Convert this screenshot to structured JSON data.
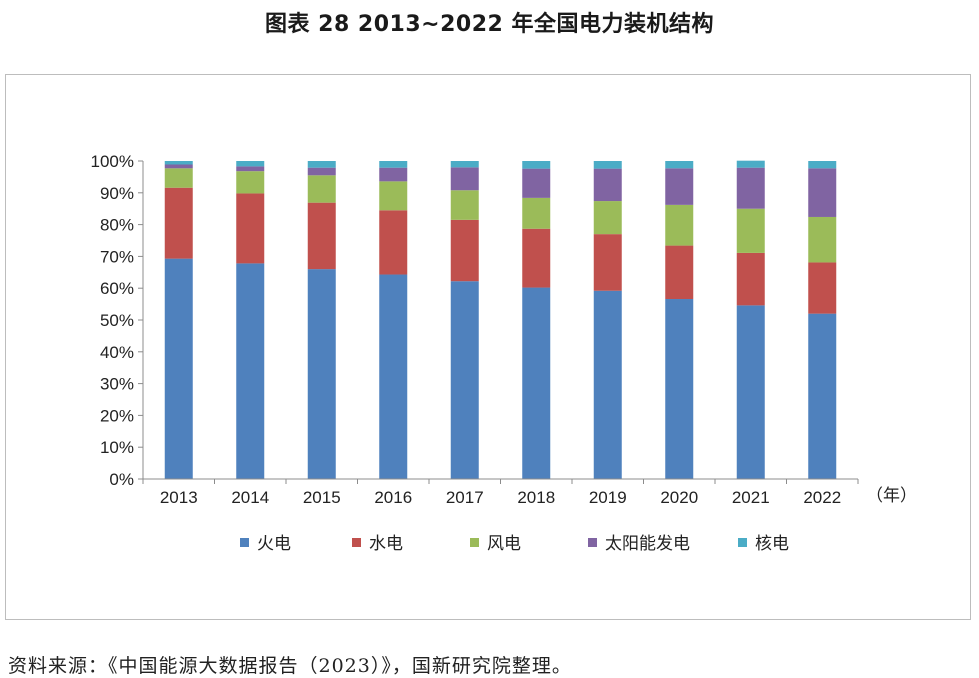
{
  "title": "图表 28  2013~2022 年全国电力装机结构",
  "source": "资料来源：《中国能源大数据报告（2023）》，国新研究院整理。",
  "chart_data": {
    "type": "bar",
    "stacked": true,
    "percent": true,
    "categories": [
      "2013",
      "2014",
      "2015",
      "2016",
      "2017",
      "2018",
      "2019",
      "2020",
      "2021",
      "2022"
    ],
    "x_unit": "（年）",
    "y_ticks": [
      "0%",
      "10%",
      "20%",
      "30%",
      "40%",
      "50%",
      "60%",
      "70%",
      "80%",
      "90%",
      "100%"
    ],
    "ylim": [
      0,
      100
    ],
    "grid": false,
    "legend_position": "bottom",
    "series": [
      {
        "name": "火电",
        "color": "#4F81BD",
        "values": [
          69.3,
          67.8,
          66.0,
          64.3,
          62.2,
          60.2,
          59.2,
          56.6,
          54.6,
          52.0
        ]
      },
      {
        "name": "水电",
        "color": "#C0504D",
        "values": [
          22.3,
          22.0,
          20.9,
          20.2,
          19.3,
          18.5,
          17.8,
          16.8,
          16.5,
          16.1
        ]
      },
      {
        "name": "风电",
        "color": "#9BBB59",
        "values": [
          6.1,
          7.0,
          8.6,
          9.1,
          9.3,
          9.7,
          10.4,
          12.8,
          13.9,
          14.3
        ]
      },
      {
        "name": "太阳能发电",
        "color": "#8064A2",
        "values": [
          1.2,
          1.5,
          2.4,
          4.3,
          7.2,
          9.2,
          10.2,
          11.5,
          12.9,
          15.3
        ]
      },
      {
        "name": "核电",
        "color": "#4BACC6",
        "values": [
          1.1,
          1.7,
          2.1,
          2.1,
          2.0,
          2.4,
          2.4,
          2.3,
          2.2,
          2.3
        ]
      }
    ]
  }
}
